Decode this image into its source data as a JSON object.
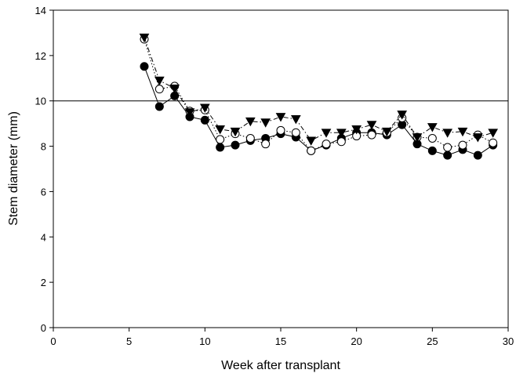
{
  "chart_data": {
    "type": "line",
    "xlabel": "Week after transplant",
    "ylabel": "Stem diameter (mm)",
    "xlim": [
      0,
      30
    ],
    "ylim": [
      0,
      14
    ],
    "xticks": [
      0,
      5,
      10,
      15,
      20,
      25,
      30
    ],
    "yticks": [
      0,
      2,
      4,
      6,
      8,
      10,
      12,
      14
    ],
    "xtick_labels": [
      "0",
      "5",
      "10",
      "15",
      "20",
      "25",
      "30"
    ],
    "ytick_labels": [
      "0",
      "2",
      "4",
      "6",
      "8",
      "10",
      "12",
      "14"
    ],
    "grid": false,
    "reference_line": {
      "y": 10
    },
    "x": [
      6,
      7,
      8,
      9,
      10,
      11,
      12,
      13,
      14,
      15,
      16,
      17,
      18,
      19,
      20,
      21,
      22,
      23,
      24,
      25,
      26,
      27,
      28,
      29
    ],
    "series": [
      {
        "marker": "filled-circle",
        "line_style": "solid",
        "values": [
          11.52,
          9.75,
          10.22,
          9.3,
          9.15,
          7.95,
          8.05,
          8.25,
          8.35,
          8.55,
          8.4,
          7.8,
          8.05,
          8.35,
          8.6,
          8.6,
          8.5,
          8.95,
          8.1,
          7.8,
          7.6,
          7.85,
          7.6,
          8.05
        ]
      },
      {
        "marker": "open-circle",
        "line_style": "dotted",
        "values": [
          12.72,
          10.52,
          10.65,
          9.55,
          9.6,
          8.3,
          8.55,
          8.35,
          8.1,
          8.7,
          8.6,
          7.8,
          8.1,
          8.2,
          8.45,
          8.5,
          8.6,
          9.25,
          8.4,
          8.35,
          7.95,
          8.05,
          8.5,
          8.15
        ]
      },
      {
        "marker": "filled-triangle-down",
        "line_style": "dash-dot",
        "values": [
          12.8,
          10.9,
          10.55,
          9.5,
          9.7,
          8.75,
          8.65,
          9.1,
          9.05,
          9.3,
          9.2,
          8.25,
          8.6,
          8.6,
          8.75,
          8.95,
          8.65,
          9.4,
          8.4,
          8.85,
          8.6,
          8.65,
          8.4,
          8.6
        ]
      }
    ]
  }
}
